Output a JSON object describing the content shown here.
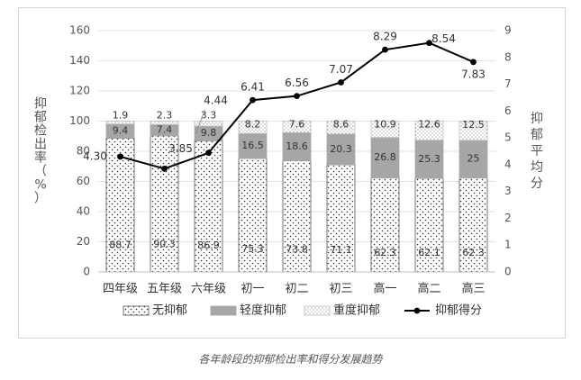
{
  "caption": "各年龄段的抑郁检出率和得分发展趋势",
  "chart_data": {
    "type": "bar+line",
    "categories": [
      "四年级",
      "五年级",
      "六年级",
      "初一",
      "初二",
      "初三",
      "高一",
      "高二",
      "高三"
    ],
    "y_left": {
      "label_chars": [
        "抑",
        "郁",
        "检",
        "出",
        "率",
        "（",
        "%",
        "）"
      ],
      "range": [
        0,
        160
      ],
      "ticks": [
        0,
        20,
        40,
        60,
        80,
        100,
        120,
        140,
        160
      ]
    },
    "y_right": {
      "label_chars": [
        "抑",
        "郁",
        "平",
        "均",
        "分"
      ],
      "range": [
        0,
        9
      ],
      "ticks": [
        0,
        1,
        2,
        3,
        4,
        5,
        6,
        7,
        8,
        9
      ]
    },
    "stack_series": [
      {
        "name": "无抑郁",
        "values": [
          88.7,
          90.3,
          86.9,
          75.3,
          73.8,
          71.1,
          62.3,
          62.1,
          62.3
        ],
        "labels": [
          "88.7",
          "90.3",
          "86.9",
          "75.3",
          "73.8",
          "71.1",
          "62.3",
          "62.1",
          "62.3"
        ],
        "style": "dots"
      },
      {
        "name": "轻度抑郁",
        "values": [
          9.4,
          7.4,
          9.8,
          16.5,
          18.6,
          20.3,
          26.8,
          25.3,
          25
        ],
        "labels": [
          "9.4",
          "7.4",
          "9.8",
          "16.5",
          "18.6",
          "20.3",
          "26.8",
          "25.3",
          "25"
        ],
        "style": "gray"
      },
      {
        "name": "重度抑郁",
        "values": [
          1.9,
          2.3,
          3.3,
          8.2,
          7.6,
          8.6,
          10.9,
          12.6,
          12.5
        ],
        "labels": [
          "1.9",
          "2.3",
          "3.3",
          "8.2",
          "7.6",
          "8.6",
          "10.9",
          "12.6",
          "12.5"
        ],
        "style": "fine"
      }
    ],
    "line_series": {
      "name": "抑郁得分",
      "values": [
        4.3,
        3.85,
        4.44,
        6.41,
        6.56,
        7.07,
        8.29,
        8.54,
        7.83
      ],
      "labels": [
        "4.30",
        "3.85",
        "4.44",
        "6.41",
        "6.56",
        "7.07",
        "8.29",
        "8.54",
        "7.83"
      ]
    },
    "legend_position": "bottom",
    "grid": true
  }
}
